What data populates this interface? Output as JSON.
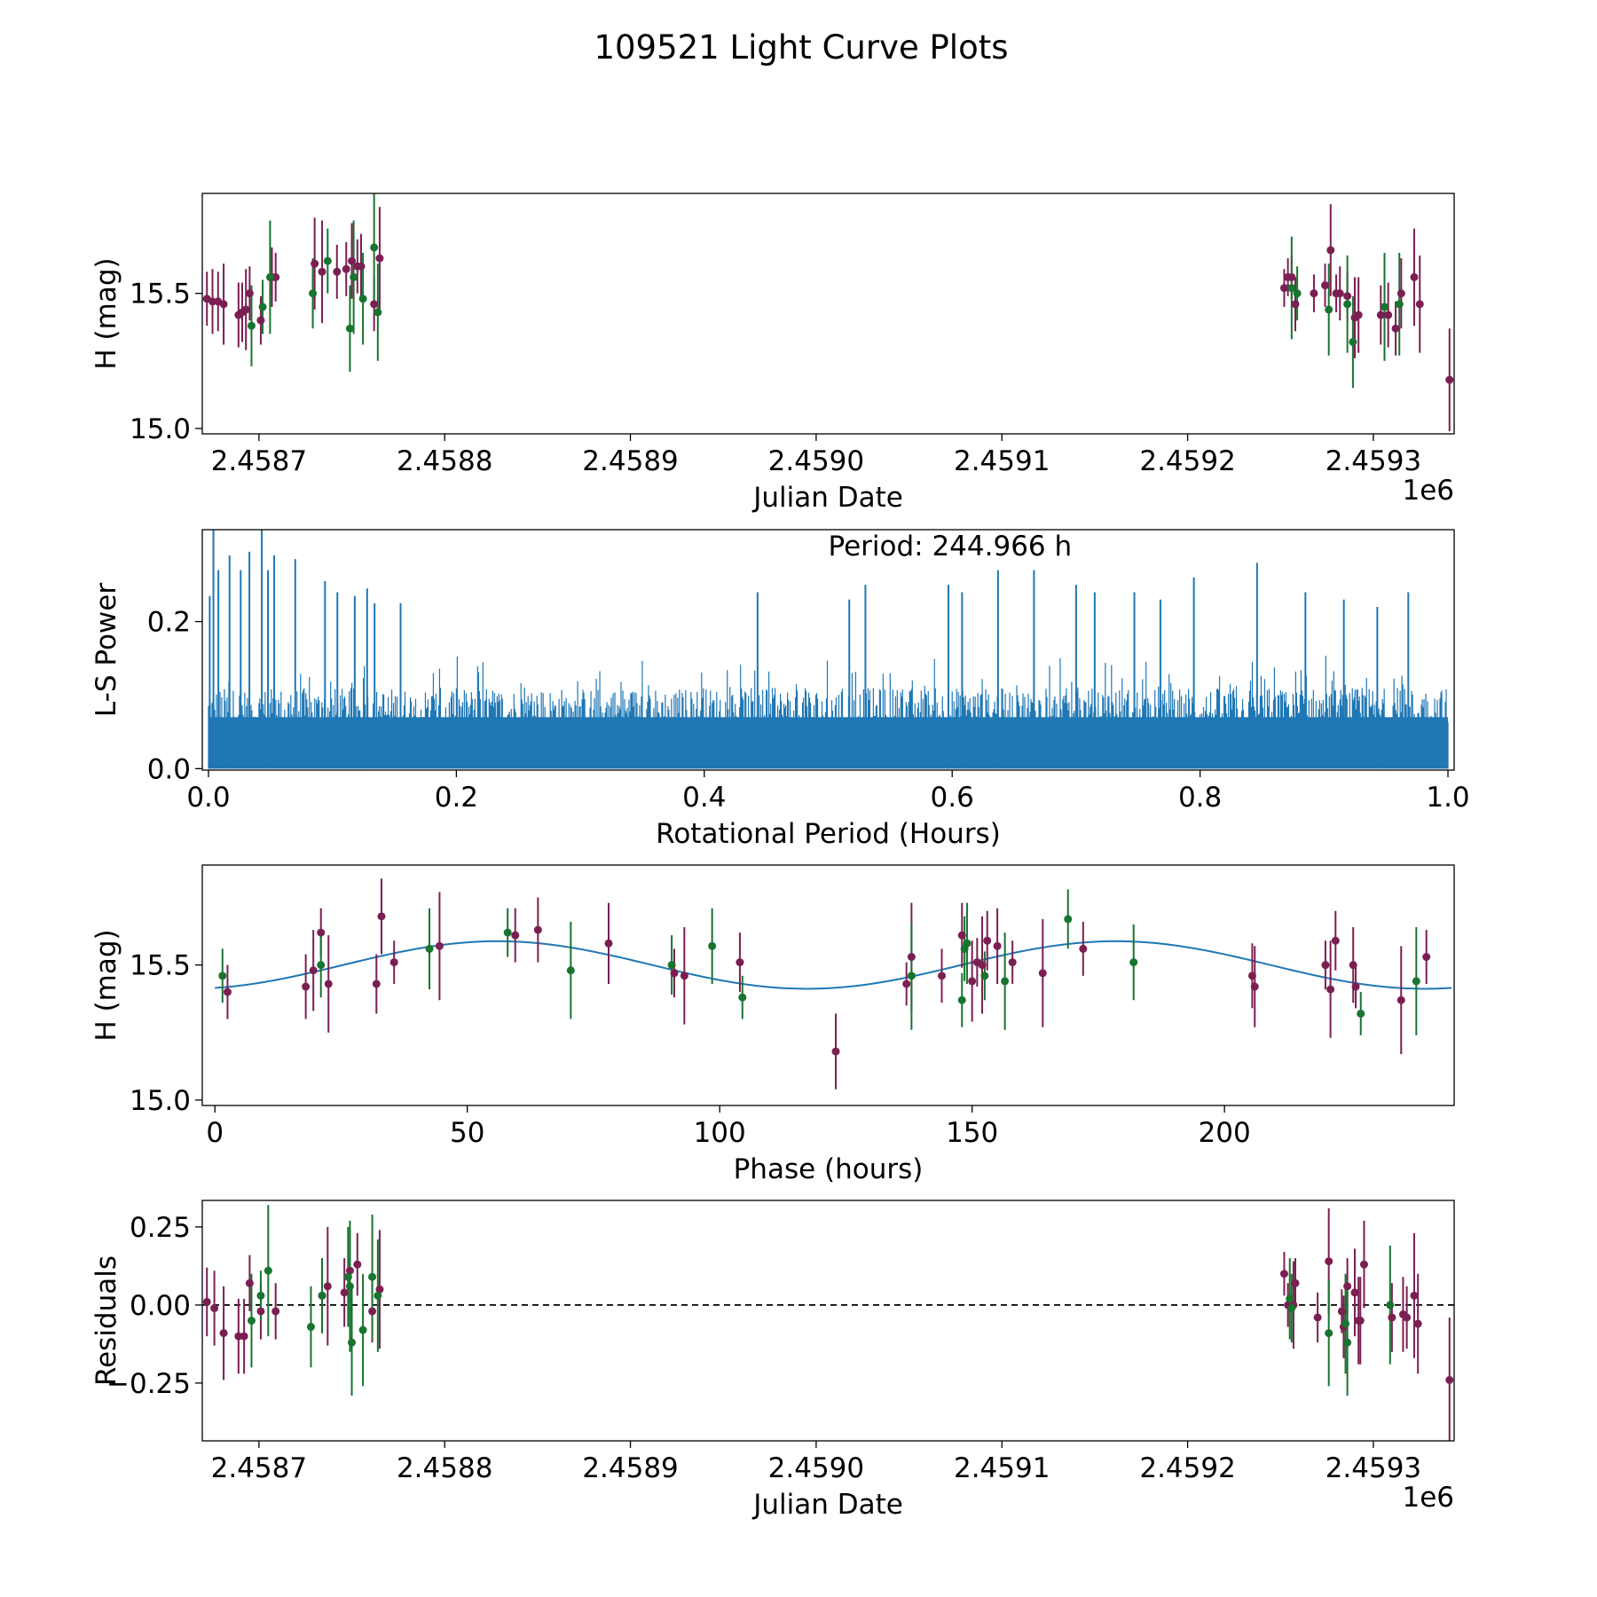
{
  "figure_title": "109521 Light Curve Plots",
  "colors": {
    "series_red": "#7b1f52",
    "series_green": "#18742f",
    "model_line": "#1f77b4",
    "axis": "#000000"
  },
  "chart_data": [
    {
      "id": "lightcurve",
      "type": "scatter",
      "xlabel": "Julian Date",
      "ylabel": "H (mag)",
      "x_offset_label": "1e6",
      "xlim": [
        2458.6695,
        2459.3435
      ],
      "ylim": [
        14.98,
        15.87
      ],
      "xticks": [
        2458.7,
        2458.8,
        2458.9,
        2459.0,
        2459.1,
        2459.2,
        2459.3
      ],
      "xtick_labels": [
        "2.4587",
        "2.4588",
        "2.4589",
        "2.4590",
        "2.4591",
        "2.4592",
        "2.4593"
      ],
      "yticks": [
        15.0,
        15.5
      ],
      "ytick_labels": [
        "15.0",
        "15.5"
      ],
      "series": [
        {
          "name": "red",
          "color": "#7b1f52",
          "x": [
            2458.672,
            2458.675,
            2458.678,
            2458.681,
            2458.689,
            2458.691,
            2458.693,
            2458.695,
            2458.701,
            2458.707,
            2458.709,
            2458.73,
            2458.734,
            2458.742,
            2458.747,
            2458.75,
            2458.753,
            2458.755,
            2458.762,
            2458.765,
            2459.252,
            2459.254,
            2459.256,
            2459.258,
            2459.268,
            2459.274,
            2459.277,
            2459.28,
            2459.282,
            2459.286,
            2459.29,
            2459.292,
            2459.304,
            2459.308,
            2459.312,
            2459.315,
            2459.322,
            2459.325,
            2459.341
          ],
          "y": [
            15.48,
            15.47,
            15.47,
            15.46,
            15.42,
            15.43,
            15.44,
            15.5,
            15.4,
            15.56,
            15.56,
            15.61,
            15.58,
            15.58,
            15.59,
            15.62,
            15.6,
            15.6,
            15.46,
            15.63,
            15.52,
            15.56,
            15.56,
            15.46,
            15.5,
            15.53,
            15.66,
            15.5,
            15.5,
            15.49,
            15.41,
            15.42,
            15.42,
            15.42,
            15.37,
            15.5,
            15.56,
            15.46,
            15.18
          ],
          "err": [
            0.1,
            0.12,
            0.11,
            0.15,
            0.12,
            0.11,
            0.15,
            0.1,
            0.09,
            0.11,
            0.09,
            0.17,
            0.19,
            0.1,
            0.1,
            0.14,
            0.1,
            0.12,
            0.1,
            0.19,
            0.07,
            0.07,
            0.08,
            0.1,
            0.07,
            0.08,
            0.17,
            0.07,
            0.1,
            0.09,
            0.15,
            0.14,
            0.11,
            0.12,
            0.1,
            0.13,
            0.18,
            0.18,
            0.19
          ]
        },
        {
          "name": "green",
          "color": "#18742f",
          "x": [
            2458.696,
            2458.702,
            2458.706,
            2458.729,
            2458.737,
            2458.749,
            2458.751,
            2458.756,
            2458.762,
            2458.764,
            2459.256,
            2459.259,
            2459.276,
            2459.286,
            2459.289,
            2459.306,
            2459.314
          ],
          "y": [
            15.38,
            15.45,
            15.56,
            15.5,
            15.62,
            15.37,
            15.56,
            15.48,
            15.67,
            15.43,
            15.52,
            15.5,
            15.44,
            15.46,
            15.32,
            15.45,
            15.46
          ],
          "err": [
            0.15,
            0.1,
            0.21,
            0.13,
            0.12,
            0.16,
            0.21,
            0.17,
            0.22,
            0.18,
            0.19,
            0.1,
            0.17,
            0.18,
            0.17,
            0.2,
            0.19
          ]
        }
      ]
    },
    {
      "id": "periodogram",
      "type": "line",
      "xlabel": "Rotational Period (Hours)",
      "ylabel": "L-S Power",
      "annotation": "Period: 244.966 h",
      "xlim": [
        -0.005,
        1.005
      ],
      "ylim": [
        -0.002,
        0.325
      ],
      "xticks": [
        0.0,
        0.2,
        0.4,
        0.6,
        0.8,
        1.0
      ],
      "xtick_labels": [
        "0.0",
        "0.2",
        "0.4",
        "0.6",
        "0.8",
        "1.0"
      ],
      "yticks": [
        0.0,
        0.2
      ],
      "ytick_labels": [
        "0.0",
        "0.2"
      ],
      "color": "#1f77b4",
      "x_range": [
        0.0,
        1.0
      ],
      "baseline_max_power": 0.11,
      "peaks_x": [
        0.001,
        0.004,
        0.008,
        0.017,
        0.026,
        0.033,
        0.043,
        0.048,
        0.053,
        0.07,
        0.094,
        0.104,
        0.118,
        0.128,
        0.134,
        0.155,
        0.443,
        0.517,
        0.53,
        0.597,
        0.608,
        0.637,
        0.666,
        0.7,
        0.715,
        0.747,
        0.768,
        0.795,
        0.846,
        0.885,
        0.916,
        0.943,
        0.968
      ],
      "peaks_y": [
        0.235,
        0.325,
        0.27,
        0.29,
        0.27,
        0.295,
        0.325,
        0.27,
        0.29,
        0.285,
        0.255,
        0.24,
        0.235,
        0.245,
        0.225,
        0.225,
        0.24,
        0.23,
        0.25,
        0.25,
        0.24,
        0.27,
        0.27,
        0.25,
        0.24,
        0.24,
        0.23,
        0.26,
        0.28,
        0.24,
        0.23,
        0.22,
        0.24
      ]
    },
    {
      "id": "phased",
      "type": "scatter",
      "xlabel": "Phase (hours)",
      "ylabel": "H (mag)",
      "xlim": [
        -2.5,
        245.5
      ],
      "ylim": [
        14.98,
        15.87
      ],
      "xticks": [
        0,
        50,
        100,
        150,
        200
      ],
      "xtick_labels": [
        "0",
        "50",
        "100",
        "150",
        "200"
      ],
      "yticks": [
        15.0,
        15.5
      ],
      "ytick_labels": [
        "15.0",
        "15.5"
      ],
      "model": {
        "type": "sinusoid",
        "mean": 15.5,
        "amplitude": 0.088,
        "period_hours": 122.48,
        "peak_phase_hours": 56.0
      },
      "series": [
        {
          "name": "red",
          "color": "#7b1f52",
          "x": [
            2.5,
            18,
            19.5,
            21,
            22.5,
            32,
            33,
            35.5,
            44.5,
            59.5,
            64,
            78,
            91,
            93,
            104,
            123,
            137,
            138,
            144,
            148,
            150,
            151,
            152,
            153,
            155,
            158,
            164,
            172,
            205.5,
            206,
            220,
            221,
            222,
            225.5,
            226,
            235,
            240
          ],
          "y": [
            15.4,
            15.42,
            15.48,
            15.62,
            15.43,
            15.43,
            15.68,
            15.51,
            15.57,
            15.61,
            15.63,
            15.58,
            15.47,
            15.46,
            15.51,
            15.18,
            15.43,
            15.53,
            15.46,
            15.61,
            15.44,
            15.51,
            15.5,
            15.59,
            15.57,
            15.51,
            15.47,
            15.56,
            15.46,
            15.42,
            15.5,
            15.41,
            15.59,
            15.5,
            15.42,
            15.37,
            15.53
          ]
        },
        {
          "name": "green",
          "color": "#18742f",
          "x": [
            1.5,
            21,
            42.5,
            58,
            70.5,
            90.5,
            98.5,
            104.5,
            138,
            148,
            148.5,
            149,
            152.5,
            156.5,
            169,
            182,
            227,
            238
          ],
          "y": [
            15.46,
            15.5,
            15.56,
            15.62,
            15.48,
            15.5,
            15.57,
            15.38,
            15.46,
            15.37,
            15.56,
            15.58,
            15.46,
            15.44,
            15.67,
            15.51,
            15.32,
            15.44
          ]
        }
      ]
    },
    {
      "id": "residuals",
      "type": "scatter",
      "xlabel": "Julian Date",
      "ylabel": "Residuals",
      "x_offset_label": "1e6",
      "xlim": [
        2458.6695,
        2459.3435
      ],
      "ylim": [
        -0.435,
        0.335
      ],
      "xticks": [
        2458.7,
        2458.8,
        2458.9,
        2459.0,
        2459.1,
        2459.2,
        2459.3
      ],
      "xtick_labels": [
        "2.4587",
        "2.4588",
        "2.4589",
        "2.4590",
        "2.4591",
        "2.4592",
        "2.4593"
      ],
      "yticks": [
        0.25,
        0.0,
        -0.25
      ],
      "ytick_labels": [
        "0.25",
        "0.00",
        "−0.25"
      ],
      "reference_line": 0.0,
      "series": [
        {
          "name": "red",
          "color": "#7b1f52",
          "x": [
            2458.672,
            2458.676,
            2458.681,
            2458.689,
            2458.692,
            2458.695,
            2458.701,
            2458.709,
            2458.734,
            2458.737,
            2458.746,
            2458.749,
            2458.753,
            2458.761,
            2458.765,
            2459.252,
            2459.254,
            2459.257,
            2459.258,
            2459.27,
            2459.276,
            2459.283,
            2459.284,
            2459.286,
            2459.29,
            2459.292,
            2459.293,
            2459.295,
            2459.31,
            2459.316,
            2459.318,
            2459.322,
            2459.324,
            2459.341
          ],
          "y": [
            0.01,
            -0.01,
            -0.09,
            -0.1,
            -0.1,
            0.07,
            -0.02,
            -0.02,
            0.03,
            0.06,
            0.04,
            0.11,
            0.13,
            -0.02,
            0.05,
            0.1,
            0.0,
            0.0,
            0.07,
            -0.04,
            0.14,
            -0.02,
            -0.07,
            0.06,
            0.04,
            -0.05,
            -0.05,
            0.13,
            -0.04,
            -0.03,
            -0.04,
            0.03,
            -0.06,
            -0.24
          ],
          "err": [
            0.11,
            0.12,
            0.15,
            0.12,
            0.12,
            0.09,
            0.09,
            0.09,
            0.12,
            0.19,
            0.11,
            0.13,
            0.1,
            0.1,
            0.19,
            0.07,
            0.07,
            0.14,
            0.08,
            0.08,
            0.17,
            0.07,
            0.1,
            0.09,
            0.14,
            0.14,
            0.14,
            0.14,
            0.11,
            0.12,
            0.1,
            0.2,
            0.16,
            0.2
          ]
        },
        {
          "name": "green",
          "color": "#18742f",
          "x": [
            2458.696,
            2458.701,
            2458.705,
            2458.728,
            2458.734,
            2458.748,
            2458.749,
            2458.75,
            2458.756,
            2458.761,
            2458.764,
            2459.255,
            2459.256,
            2459.276,
            2459.285,
            2459.286,
            2459.309
          ],
          "y": [
            -0.05,
            0.03,
            0.11,
            -0.07,
            0.03,
            0.09,
            0.06,
            -0.12,
            -0.08,
            0.09,
            0.03,
            0.02,
            -0.01,
            -0.09,
            -0.06,
            -0.12,
            0.0
          ],
          "err": [
            0.15,
            0.08,
            0.21,
            0.13,
            0.12,
            0.16,
            0.21,
            0.17,
            0.18,
            0.2,
            0.18,
            0.13,
            0.11,
            0.17,
            0.16,
            0.17,
            0.19
          ]
        }
      ]
    }
  ]
}
